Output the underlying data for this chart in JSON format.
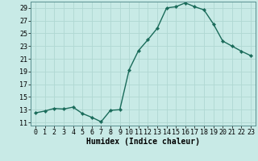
{
  "x": [
    0,
    1,
    2,
    3,
    4,
    5,
    6,
    7,
    8,
    9,
    10,
    11,
    12,
    13,
    14,
    15,
    16,
    17,
    18,
    19,
    20,
    21,
    22,
    23
  ],
  "y": [
    12.5,
    12.8,
    13.2,
    13.1,
    13.4,
    12.4,
    11.8,
    11.1,
    12.9,
    13.0,
    19.3,
    22.3,
    24.0,
    25.8,
    29.0,
    29.2,
    29.8,
    29.2,
    28.7,
    26.5,
    23.8,
    23.0,
    22.2,
    21.5
  ],
  "line_color": "#1a6b5a",
  "marker_color": "#1a6b5a",
  "bg_color": "#c8eae6",
  "grid_color": "#b0d8d2",
  "xlabel": "Humidex (Indice chaleur)",
  "ylabel": "",
  "ylim": [
    10.5,
    30.0
  ],
  "xlim": [
    -0.5,
    23.5
  ],
  "yticks": [
    11,
    13,
    15,
    17,
    19,
    21,
    23,
    25,
    27,
    29
  ],
  "xticks": [
    0,
    1,
    2,
    3,
    4,
    5,
    6,
    7,
    8,
    9,
    10,
    11,
    12,
    13,
    14,
    15,
    16,
    17,
    18,
    19,
    20,
    21,
    22,
    23
  ],
  "xlabel_fontsize": 7.0,
  "tick_fontsize": 6.0,
  "linewidth": 1.0,
  "markersize": 2.2
}
